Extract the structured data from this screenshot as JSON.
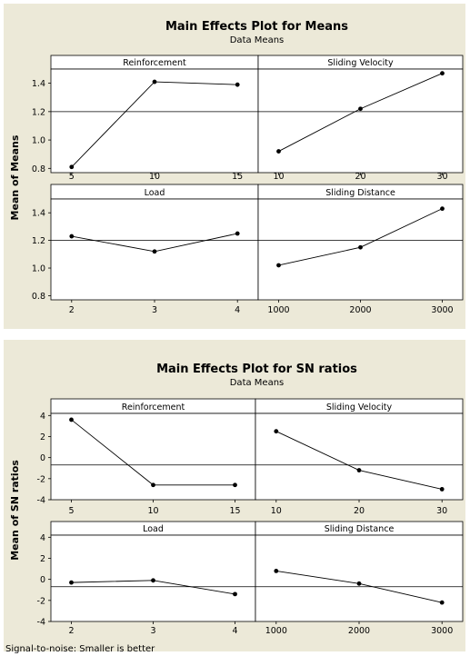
{
  "chart_data": [
    {
      "type": "line",
      "title": "Main Effects Plot for Means",
      "subtitle": "Data Means",
      "ylabel": "Mean of Means",
      "ylim": [
        0.77,
        1.5
      ],
      "yticks": [
        0.8,
        1.0,
        1.2,
        1.4
      ],
      "ytick_labels": [
        "0.8",
        "1.0",
        "1.2",
        "1.4"
      ],
      "reference_line": 1.2,
      "panels": [
        {
          "name": "Reinforcement",
          "x": [
            "5",
            "10",
            "15"
          ],
          "values": [
            0.81,
            1.41,
            1.39
          ]
        },
        {
          "name": "Sliding Velocity",
          "x": [
            "10",
            "20",
            "30"
          ],
          "values": [
            0.92,
            1.22,
            1.47
          ]
        },
        {
          "name": "Load",
          "x": [
            "2",
            "3",
            "4"
          ],
          "values": [
            1.23,
            1.12,
            1.25
          ]
        },
        {
          "name": "Sliding Distance",
          "x": [
            "1000",
            "2000",
            "3000"
          ],
          "values": [
            1.02,
            1.15,
            1.43
          ]
        }
      ]
    },
    {
      "type": "line",
      "title": "Main Effects Plot for SN ratios",
      "subtitle": "Data Means",
      "ylabel": "Mean of SN ratios",
      "ylim": [
        -4.0,
        4.2
      ],
      "yticks": [
        -4,
        -2,
        0,
        2,
        4
      ],
      "ytick_labels": [
        "-4",
        "-2",
        "0",
        "2",
        "4"
      ],
      "reference_line": -0.7,
      "footnote": "Signal-to-noise: Smaller is better",
      "panels": [
        {
          "name": "Reinforcement",
          "x": [
            "5",
            "10",
            "15"
          ],
          "values": [
            3.6,
            -2.6,
            -2.6
          ]
        },
        {
          "name": "Sliding Velocity",
          "x": [
            "10",
            "20",
            "30"
          ],
          "values": [
            2.5,
            -1.2,
            -3.0
          ]
        },
        {
          "name": "Load",
          "x": [
            "2",
            "3",
            "4"
          ],
          "values": [
            -0.3,
            -0.1,
            -1.4
          ]
        },
        {
          "name": "Sliding Distance",
          "x": [
            "1000",
            "2000",
            "3000"
          ],
          "values": [
            0.8,
            -0.4,
            -2.2
          ]
        }
      ]
    }
  ],
  "colors": {
    "background": "#ece9d8",
    "plot_area": "#ffffff",
    "line": "#000000",
    "marker": "#000000"
  }
}
